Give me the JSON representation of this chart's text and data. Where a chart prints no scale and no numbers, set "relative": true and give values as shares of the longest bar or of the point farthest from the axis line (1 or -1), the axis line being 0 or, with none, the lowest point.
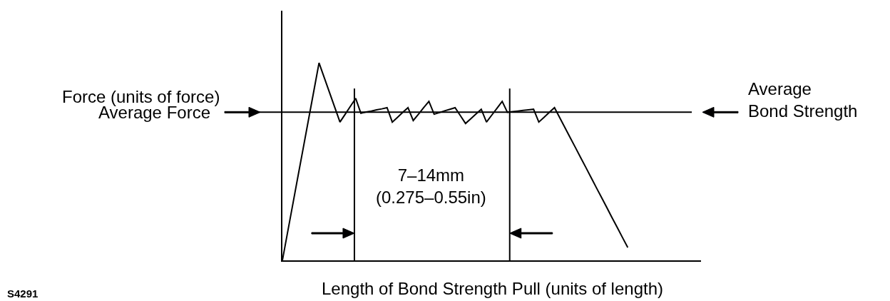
{
  "chart_data": {
    "type": "line",
    "relative": true,
    "xlabel": "Length of Bond Strength Pull (units of length)",
    "ylabel": "Force (units of force)",
    "categories": [
      null,
      null,
      null,
      null,
      null,
      null,
      null,
      null,
      null,
      null,
      null,
      null,
      null,
      null,
      null,
      null,
      null,
      null,
      null,
      null,
      null,
      null,
      null,
      null,
      null,
      null,
      null,
      null,
      null,
      null,
      null,
      null,
      null,
      null,
      null,
      null,
      null,
      null,
      null,
      null,
      null,
      null,
      null,
      null,
      null,
      null,
      null,
      null,
      null,
      null,
      null,
      null,
      null,
      null,
      null,
      null,
      null,
      null,
      null,
      null,
      null,
      null,
      null,
      null,
      null,
      null,
      null,
      null,
      null,
      null,
      null,
      null,
      null,
      null,
      null,
      null,
      null,
      null,
      null,
      null,
      null
    ],
    "series": [
      {
        "color": "#000000",
        "values": [
          0,
          0.143,
          0.286,
          0.429,
          0.571,
          0.714,
          0.857,
          1,
          0.925,
          0.85,
          0.775,
          0.7,
          0.74,
          0.78,
          0.82,
          0.745,
          0.751,
          0.756,
          0.762,
          0.767,
          0.773,
          0.7,
          0.724,
          0.749,
          0.773,
          0.708,
          0.74,
          0.773,
          0.805,
          0.74,
          0.748,
          0.757,
          0.765,
          0.773,
          0.733,
          0.693,
          0.717,
          0.741,
          0.765,
          0.7,
          0.735,
          0.77,
          0.805,
          0.75,
          0.753,
          0.756,
          0.759,
          0.762,
          0.765,
          0.7,
          0.724,
          0.749,
          0.773,
          0.722,
          0.672,
          0.621,
          0.571,
          0.52,
          0.47,
          0.419,
          0.368,
          0.318,
          0.267,
          0.216,
          0.166,
          0.115,
          0.065,
          null,
          null,
          null,
          null,
          null,
          null,
          null,
          null,
          null,
          null,
          null,
          null,
          null,
          null
        ]
      }
    ],
    "ref_lines": [
      {
        "axis": "y",
        "value": 0.75,
        "color": "#000000"
      }
    ],
    "annotations": [
      "Average Force",
      "Average Bond Strength",
      "7–14mm (0.275–0.55in)",
      "S4291"
    ],
    "marker": "none",
    "line_style": "solid",
    "legend": false
  }
}
